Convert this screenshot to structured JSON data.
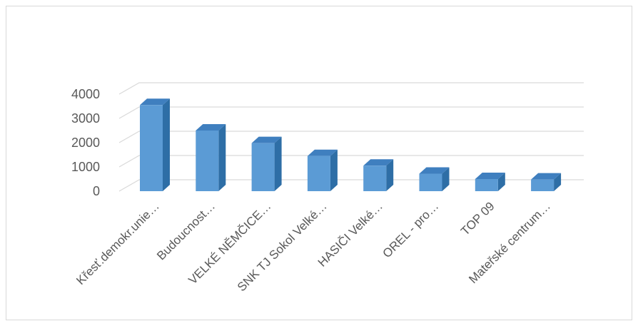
{
  "chart_data": {
    "type": "bar",
    "style": "3d-column",
    "categories": [
      "Křesť.demokr.unie…",
      "Budoucnost…",
      "VELKÉ NĚMČICE…",
      "SNK TJ Sokol Velké…",
      "HASIČI Velké…",
      "OREL - pro…",
      "TOP 09",
      "Mateřské centrum…"
    ],
    "values": [
      3550,
      2500,
      1980,
      1450,
      1050,
      720,
      500,
      480
    ],
    "yticks": [
      "4000",
      "3000",
      "2000",
      "1000",
      "0"
    ],
    "ylim": [
      0,
      4000
    ],
    "grid": true,
    "title": "",
    "xlabel": "",
    "ylabel": "",
    "colors": {
      "bar_front": "#5b9bd5",
      "bar_side": "#2e6ea6",
      "bar_top": "#3f7fbf",
      "grid": "#d9d9d9",
      "text": "#595959"
    }
  }
}
